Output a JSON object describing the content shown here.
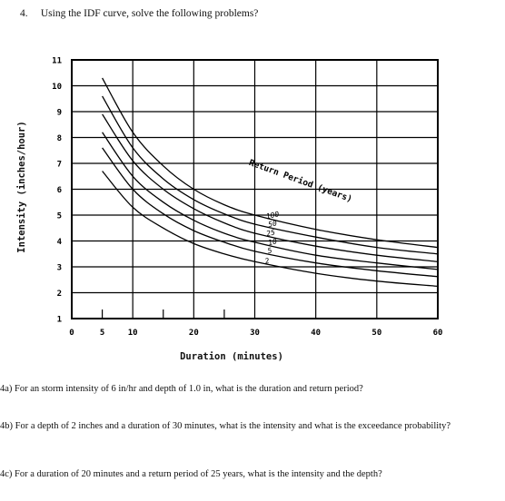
{
  "question": {
    "number": "4.",
    "text": "Using the IDF curve, solve the following problems?"
  },
  "chart_data": {
    "type": "line",
    "xlabel": "Duration (minutes)",
    "ylabel": "Intensity (inches/hour)",
    "x_ticks": [
      0,
      5,
      10,
      20,
      30,
      40,
      50,
      60
    ],
    "y_ticks": [
      1,
      2,
      3,
      4,
      5,
      6,
      7,
      8,
      9,
      10,
      11
    ],
    "xlim": [
      0,
      60
    ],
    "ylim": [
      1,
      11
    ],
    "grid": true,
    "legend_title": "Return Period (years)",
    "series": [
      {
        "name": "100",
        "x": [
          5,
          10,
          15,
          20,
          25,
          30,
          40,
          50,
          60
        ],
        "y": [
          10.3,
          8.2,
          6.9,
          6.0,
          5.4,
          5.0,
          4.45,
          4.05,
          3.75
        ]
      },
      {
        "name": "50",
        "x": [
          5,
          10,
          15,
          20,
          25,
          30,
          40,
          50,
          60
        ],
        "y": [
          9.6,
          7.6,
          6.4,
          5.6,
          5.05,
          4.65,
          4.15,
          3.75,
          3.5
        ]
      },
      {
        "name": "25",
        "x": [
          5,
          10,
          15,
          20,
          25,
          30,
          40,
          50,
          60
        ],
        "y": [
          8.9,
          7.1,
          6.0,
          5.25,
          4.7,
          4.3,
          3.8,
          3.45,
          3.2
        ]
      },
      {
        "name": "10",
        "x": [
          5,
          10,
          15,
          20,
          25,
          30,
          40,
          50,
          60
        ],
        "y": [
          8.2,
          6.5,
          5.5,
          4.8,
          4.3,
          3.95,
          3.45,
          3.15,
          2.9
        ]
      },
      {
        "name": "5",
        "x": [
          5,
          10,
          15,
          20,
          25,
          30,
          40,
          50,
          60
        ],
        "y": [
          7.6,
          6.0,
          5.05,
          4.4,
          3.95,
          3.6,
          3.15,
          2.85,
          2.62
        ]
      },
      {
        "name": "2",
        "x": [
          5,
          10,
          15,
          20,
          25,
          30,
          40,
          50,
          60
        ],
        "y": [
          6.7,
          5.3,
          4.5,
          3.9,
          3.5,
          3.2,
          2.75,
          2.45,
          2.25
        ]
      }
    ]
  },
  "problems": [
    {
      "text": "4a) For an storm intensity of 6 in/hr and depth of 1.0 in, what is the duration and return period?"
    },
    {
      "text": "4b) For a depth of 2 inches and a duration of 30 minutes, what is the intensity and what is the exceedance probability?"
    },
    {
      "text": "4c) For a duration of 20 minutes and a return period of 25 years, what is the intensity and the depth?"
    }
  ]
}
